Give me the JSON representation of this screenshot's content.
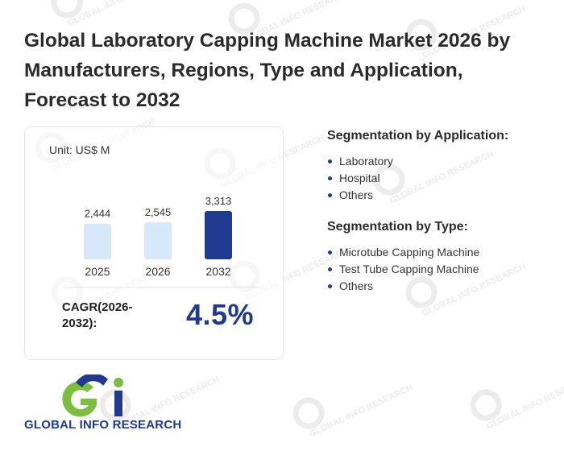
{
  "title": "Global Laboratory Capping Machine Market 2026 by Manufacturers, Regions, Type and Application, Forecast to 2032",
  "chart_data": {
    "type": "bar",
    "unit_label": "Unit: US$ M",
    "categories": [
      "2025",
      "2026",
      "2032"
    ],
    "values": [
      2444,
      2545,
      3313
    ],
    "value_labels": [
      "2,444",
      "2,545",
      "3,313"
    ],
    "colors": [
      "#d6e8fa",
      "#d6e8fa",
      "#1f3a8f"
    ]
  },
  "cagr": {
    "label": "CAGR(2026-2032):",
    "value": "4.5%"
  },
  "segmentation_application": {
    "heading": "Segmentation by Application:",
    "items": [
      "Laboratory",
      "Hospital",
      "Others"
    ]
  },
  "segmentation_type": {
    "heading": "Segmentation by Type:",
    "items": [
      "Microtube Capping Machine",
      "Test Tube Capping Machine",
      "Others"
    ]
  },
  "logo": {
    "text": "GLOBAL INFO RESEARCH",
    "watermark_text": "GLOBAL INFO RESEARCH",
    "colors": {
      "green": "#7cbf3f",
      "blue": "#1f3a8f"
    }
  }
}
